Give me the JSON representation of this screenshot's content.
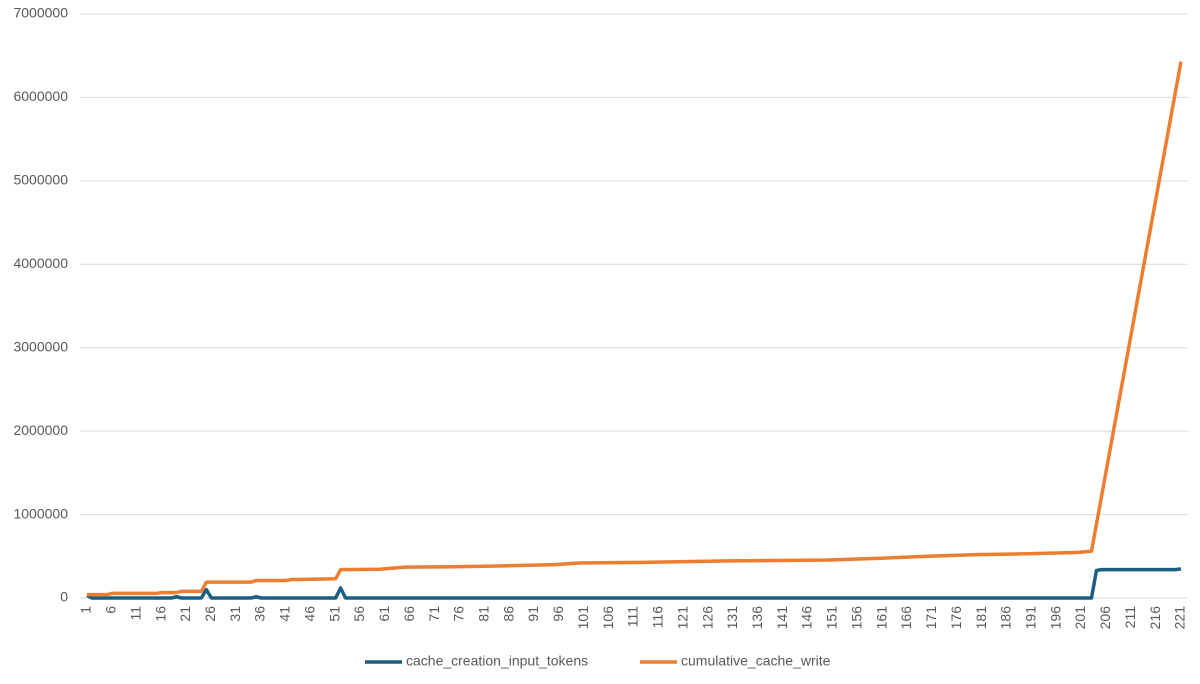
{
  "chart_data": {
    "type": "line",
    "xlim": [
      1,
      221
    ],
    "xticks": [
      1,
      6,
      11,
      16,
      21,
      26,
      31,
      36,
      41,
      46,
      51,
      56,
      61,
      66,
      71,
      76,
      81,
      86,
      91,
      96,
      101,
      106,
      111,
      116,
      121,
      126,
      131,
      136,
      141,
      146,
      151,
      156,
      161,
      166,
      171,
      176,
      181,
      186,
      191,
      196,
      201,
      206,
      211,
      216,
      221
    ],
    "ylim": [
      0,
      7000000
    ],
    "yticks": [
      0,
      1000000,
      2000000,
      3000000,
      4000000,
      5000000,
      6000000,
      7000000
    ],
    "grid": true,
    "legend": "bottom",
    "series": [
      {
        "name": "cache_creation_input_tokens",
        "color": "#1a5f80",
        "x": [
          1,
          2,
          18,
          19,
          20,
          24,
          25,
          26,
          34,
          35,
          36,
          51,
          52,
          53,
          203,
          204,
          205,
          220,
          221
        ],
        "values": [
          30000,
          0,
          0,
          15000,
          0,
          0,
          100000,
          0,
          0,
          15000,
          0,
          0,
          120000,
          0,
          0,
          330000,
          340000,
          340000,
          350000
        ]
      },
      {
        "name": "cumulative_cache_write",
        "color": "#ed7d31",
        "x": [
          1,
          5,
          6,
          15,
          16,
          19,
          20,
          24,
          25,
          34,
          35,
          41,
          42,
          51,
          52,
          60,
          65,
          75,
          85,
          95,
          100,
          110,
          120,
          130,
          140,
          150,
          160,
          170,
          180,
          190,
          200,
          203,
          221
        ],
        "values": [
          40000,
          40000,
          55000,
          55000,
          65000,
          65000,
          80000,
          80000,
          190000,
          190000,
          210000,
          210000,
          220000,
          230000,
          340000,
          345000,
          370000,
          375000,
          385000,
          400000,
          420000,
          425000,
          435000,
          445000,
          450000,
          455000,
          475000,
          500000,
          520000,
          530000,
          545000,
          560000,
          6430000
        ]
      }
    ]
  }
}
